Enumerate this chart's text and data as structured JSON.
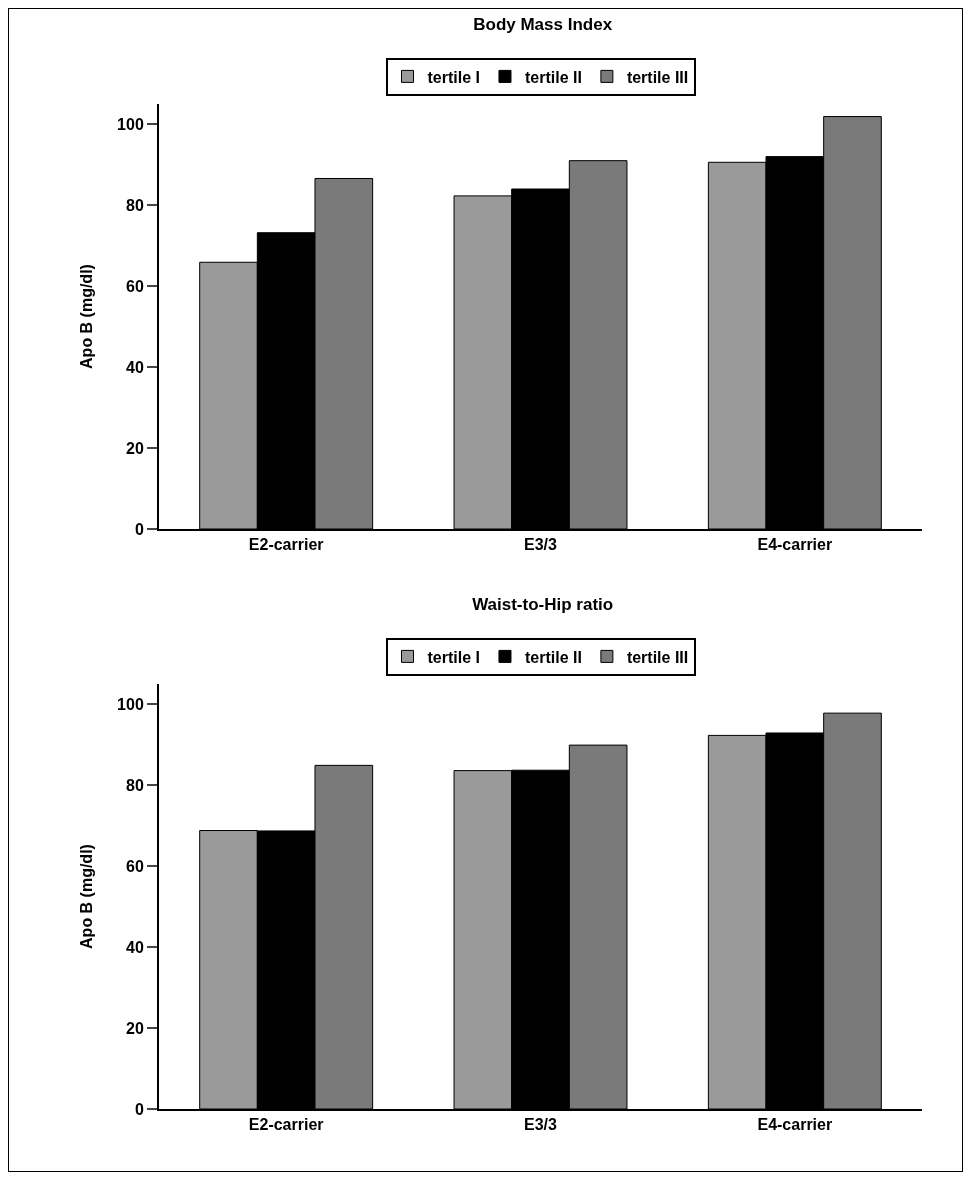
{
  "chart_data": [
    {
      "type": "bar",
      "title": "Body Mass Index",
      "ylabel": "Apo B (mg/dl)",
      "categories": [
        "E2-carrier",
        "E3/3",
        "E4-carrier"
      ],
      "series": [
        {
          "name": "tertile I",
          "color": "#9a9a9a",
          "values": [
            65.9,
            82.3,
            90.6
          ]
        },
        {
          "name": "tertile II",
          "color": "#000000",
          "values": [
            73.2,
            84.0,
            92.0
          ]
        },
        {
          "name": "tertile III",
          "color": "#7a7a7a",
          "values": [
            86.6,
            91.0,
            101.9
          ]
        }
      ],
      "ylim": [
        0,
        105
      ],
      "yticks": [
        0,
        20,
        40,
        60,
        80,
        100
      ],
      "grid": false,
      "legend": "top"
    },
    {
      "type": "bar",
      "title": "Waist-to-Hip ratio",
      "ylabel": "Apo B (mg/dl)",
      "categories": [
        "E2-carrier",
        "E3/3",
        "E4-carrier"
      ],
      "series": [
        {
          "name": "tertile I",
          "color": "#9a9a9a",
          "values": [
            68.8,
            83.6,
            92.3
          ]
        },
        {
          "name": "tertile II",
          "color": "#000000",
          "values": [
            68.7,
            83.7,
            92.9
          ]
        },
        {
          "name": "tertile III",
          "color": "#7a7a7a",
          "values": [
            84.9,
            89.9,
            97.8
          ]
        }
      ],
      "ylim": [
        0,
        105
      ],
      "yticks": [
        0,
        20,
        40,
        60,
        80,
        100
      ],
      "grid": false,
      "legend": "top"
    }
  ]
}
